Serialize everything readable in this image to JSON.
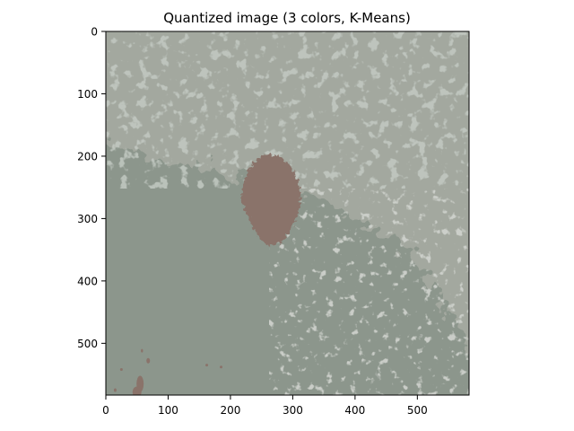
{
  "chart_data": {
    "type": "heatmap",
    "title": "Quantized image (3 colors, K-Means)",
    "xlabel": "",
    "ylabel": "",
    "xlim": [
      0,
      583
    ],
    "ylim": [
      583,
      0
    ],
    "x_ticks": [
      0,
      100,
      200,
      300,
      400,
      500
    ],
    "y_ticks": [
      0,
      100,
      200,
      300,
      400,
      500
    ],
    "grid": false,
    "legend": "none",
    "palette": {
      "light_gray": "#a3a89f",
      "mid_gray": "#8c968c",
      "brown": "#8a736a"
    },
    "regions": [
      {
        "name": "light-gray-background",
        "color_key": "light_gray"
      },
      {
        "name": "mid-gray-lower-left-area",
        "color_key": "mid_gray"
      },
      {
        "name": "brown-central-blob",
        "color_key": "brown",
        "center": [
          265,
          270
        ],
        "x_range": [
          222,
          318
        ],
        "y_range": [
          196,
          342
        ]
      },
      {
        "name": "brown-specks-bottom-left",
        "color_key": "brown",
        "x_range": [
          15,
          185
        ],
        "y_range": [
          510,
          583
        ]
      }
    ]
  }
}
